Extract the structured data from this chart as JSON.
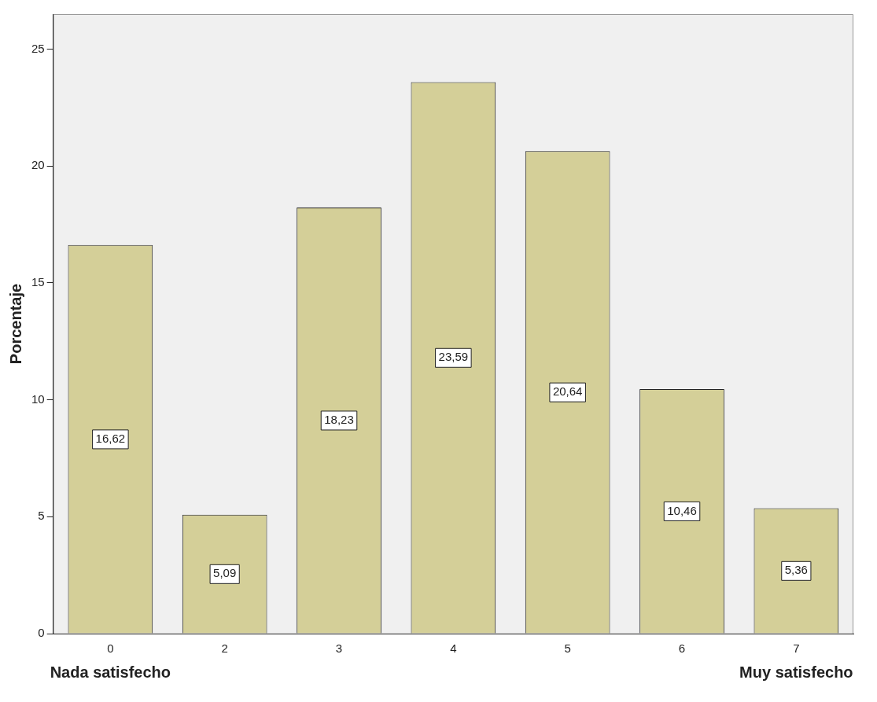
{
  "chart_data": {
    "type": "bar",
    "ylabel": "Porcentaje",
    "categories": [
      "0",
      "2",
      "3",
      "4",
      "5",
      "6",
      "7"
    ],
    "values": [
      16.62,
      5.09,
      18.23,
      23.59,
      20.64,
      10.46,
      5.36
    ],
    "value_labels": [
      "16,62",
      "5,09",
      "18,23",
      "23,59",
      "20,64",
      "10,46",
      "5,36"
    ],
    "color": "#d4cf98",
    "ylim": [
      0,
      26.5
    ],
    "yticks": [
      0,
      5,
      10,
      15,
      20,
      25
    ],
    "grid": false,
    "legend": false,
    "annotations": [
      "Nada satisfecho",
      "Muy satisfecho"
    ]
  }
}
